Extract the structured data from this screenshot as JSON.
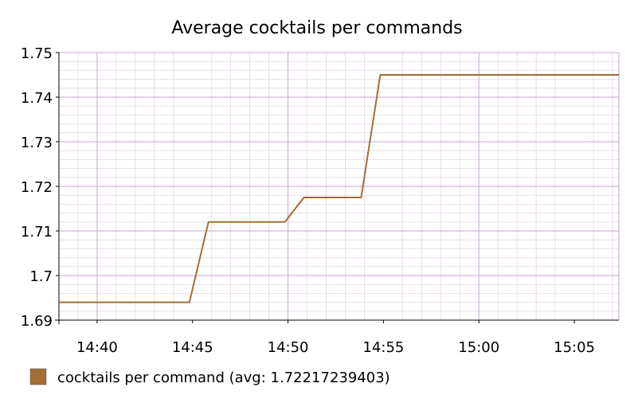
{
  "chart_data": {
    "type": "line",
    "title": "Average cocktails per commands",
    "xlabel": "",
    "ylabel": "",
    "x_ticks": [
      "14:40",
      "14:45",
      "14:50",
      "14:55",
      "15:00",
      "15:05"
    ],
    "y_ticks": [
      "1.69",
      "1.7",
      "1.71",
      "1.72",
      "1.73",
      "1.74",
      "1.75"
    ],
    "xlim": [
      "14:38:00",
      "15:07:20"
    ],
    "ylim": [
      1.69,
      1.75
    ],
    "grid": true,
    "legend_position": "bottom-left",
    "colors": {
      "series": "#a36e35",
      "major_grid": "#c9a5cf",
      "minor_grid": "#ecdcec",
      "axis": "#000000"
    },
    "series": [
      {
        "name": "cocktails per command (avg: 1.72217239403)",
        "x": [
          "14:38:00",
          "14:44:50",
          "14:45:50",
          "14:49:50",
          "14:50:50",
          "14:53:50",
          "14:54:50",
          "15:07:20"
        ],
        "values": [
          1.694,
          1.694,
          1.712,
          1.712,
          1.7175,
          1.7175,
          1.745,
          1.745
        ]
      }
    ]
  }
}
